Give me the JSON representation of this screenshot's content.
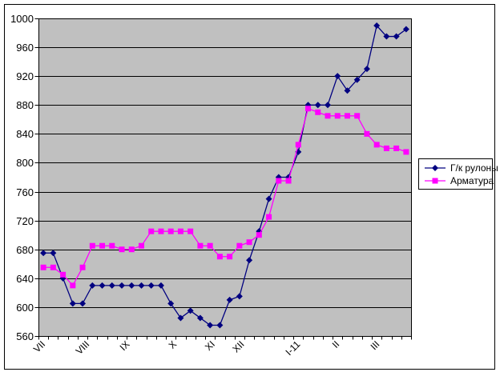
{
  "chart_data": {
    "type": "line",
    "title": "",
    "grid": true,
    "legend_position": "right",
    "plot_bg_color": "#C0C0C0",
    "axis_color": "#000000",
    "text_color": "#000000",
    "series": [
      {
        "name": "Г/к рулоны",
        "color": "#000080",
        "marker": "diamond",
        "values": [
          675,
          675,
          640,
          605,
          605,
          630,
          630,
          630,
          630,
          630,
          630,
          630,
          630,
          605,
          585,
          595,
          585,
          575,
          575,
          610,
          615,
          665,
          705,
          750,
          780,
          780,
          815,
          880,
          880,
          880,
          920,
          900,
          915,
          930,
          990,
          975,
          975,
          985
        ]
      },
      {
        "name": "Арматура",
        "color": "#FF00FF",
        "marker": "square",
        "values": [
          655,
          655,
          645,
          630,
          655,
          685,
          685,
          685,
          680,
          680,
          685,
          705,
          705,
          705,
          705,
          705,
          685,
          685,
          670,
          670,
          685,
          690,
          700,
          725,
          775,
          775,
          825,
          875,
          870,
          865,
          865,
          865,
          865,
          840,
          825,
          820,
          820,
          815
        ]
      }
    ],
    "x_axis": {
      "points_per_series": 38,
      "labels": [
        {
          "text": "VII",
          "i": 0
        },
        {
          "text": "VIII",
          "i": 4.5
        },
        {
          "text": "IX",
          "i": 8.6
        },
        {
          "text": "X",
          "i": 13.4
        },
        {
          "text": "XI",
          "i": 17.3
        },
        {
          "text": "XII",
          "i": 20.3
        },
        {
          "text": "I-11",
          "i": 26
        },
        {
          "text": "II",
          "i": 30
        },
        {
          "text": "III",
          "i": 34.1
        }
      ]
    },
    "y_axis": {
      "min": 560,
      "max": 1000,
      "step": 40,
      "tick_labels": [
        "560",
        "600",
        "640",
        "680",
        "720",
        "760",
        "800",
        "840",
        "880",
        "920",
        "960",
        "1000"
      ]
    }
  }
}
